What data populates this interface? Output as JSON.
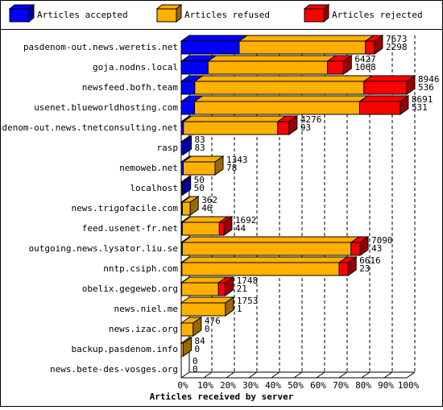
{
  "chart_data": {
    "type": "bar3d_stacked_h",
    "x_label": "Articles received by server",
    "categories": [
      "pasdenom-out.news.weretis.net",
      "goja.nodns.local",
      "newsfeed.bofh.team",
      "usenet.blueworldhosting.com",
      "pasdenom-out.news.tnetconsulting.net",
      "rasp",
      "nemoweb.net",
      "localhost",
      "news.trigofacile.com",
      "feed.usenet-fr.net",
      "outgoing.news.lysator.liu.se",
      "nntp.csiph.com",
      "obelix.gegeweb.org",
      "news.niel.me",
      "news.izac.org",
      "backup.pasdenom.info",
      "news.bete-des-vosges.org"
    ],
    "series": [
      {
        "name": "Articles accepted",
        "color": "#0000ff",
        "values": [
          25.7,
          11.9,
          6,
          5.9,
          1,
          0.9,
          0.9,
          0.6,
          0.5,
          0.5,
          0.5,
          0.3,
          0.2,
          0,
          0,
          0,
          0
        ]
      },
      {
        "name": "Articles refused",
        "color": "#ffb000",
        "values": [
          56,
          53,
          75,
          73.2,
          41.8,
          0,
          14.1,
          0,
          3.5,
          16.4,
          74.8,
          69.7,
          16.3,
          19.6,
          5.3,
          0.9,
          0
        ]
      },
      {
        "name": "Articles rejected",
        "color": "#ff0000",
        "values": [
          4,
          7,
          19,
          18,
          5,
          0,
          0,
          0,
          0,
          2,
          4,
          4,
          3,
          0,
          0,
          0,
          0
        ]
      }
    ],
    "received": [
      7673,
      6427,
      8946,
      8691,
      4276,
      83,
      1343,
      50,
      362,
      1692,
      7090,
      6616,
      1748,
      1753,
      476,
      84,
      0
    ],
    "accepted": [
      2298,
      1068,
      536,
      531,
      93,
      83,
      78,
      50,
      46,
      44,
      43,
      23,
      21,
      1,
      0,
      0,
      0
    ],
    "xlim": [
      0,
      100
    ],
    "xticks": [
      {
        "value": 0,
        "label": "0%"
      },
      {
        "value": 10,
        "label": "10%"
      },
      {
        "value": 20,
        "label": "20%"
      },
      {
        "value": 30,
        "label": "30%"
      },
      {
        "value": 40,
        "label": "40%"
      },
      {
        "value": 50,
        "label": "50%"
      },
      {
        "value": 60,
        "label": "60%"
      },
      {
        "value": 70,
        "label": "70%"
      },
      {
        "value": 80,
        "label": "80%"
      },
      {
        "value": 90,
        "label": "90%"
      },
      {
        "value": 100,
        "label": "100%"
      }
    ],
    "grid": true
  }
}
